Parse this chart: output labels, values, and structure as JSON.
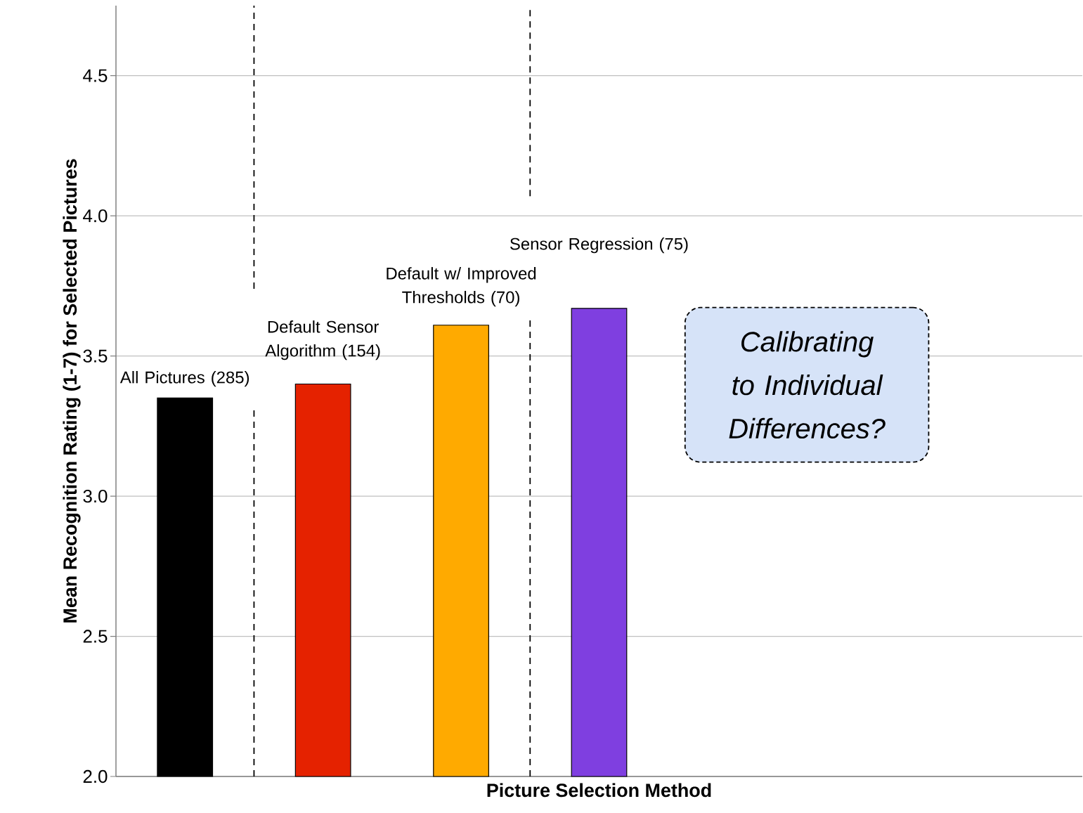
{
  "chart_data": {
    "type": "bar",
    "xlabel": "Picture Selection Method",
    "ylabel": "Mean Recognition Rating (1-7) for Selected Pictures",
    "categories": [
      "All Pictures (285)",
      "Default Sensor Algorithm (154)",
      "Default  w/ Improved Thresholds (70)",
      "Sensor Regression (75)",
      null,
      null,
      null
    ],
    "values": [
      3.35,
      3.4,
      3.61,
      3.67,
      null,
      null,
      null
    ],
    "colors": [
      "#000000",
      "#e52200",
      "#ffaa00",
      "#7f3fe0",
      "#000000",
      "#000000",
      "#000000"
    ],
    "ylim": [
      2.0,
      4.75
    ],
    "yticks": [
      {
        "value": 2.0,
        "label": "2.0"
      },
      {
        "value": 2.5,
        "label": "2.5"
      },
      {
        "value": 3.0,
        "label": "3.0"
      },
      {
        "value": 3.5,
        "label": "3.5"
      },
      {
        "value": 4.0,
        "label": "4.0"
      },
      {
        "value": 4.5,
        "label": "4.5"
      }
    ],
    "grid": "y",
    "annotations": [
      "Calibrating to Individual Differences?"
    ]
  }
}
